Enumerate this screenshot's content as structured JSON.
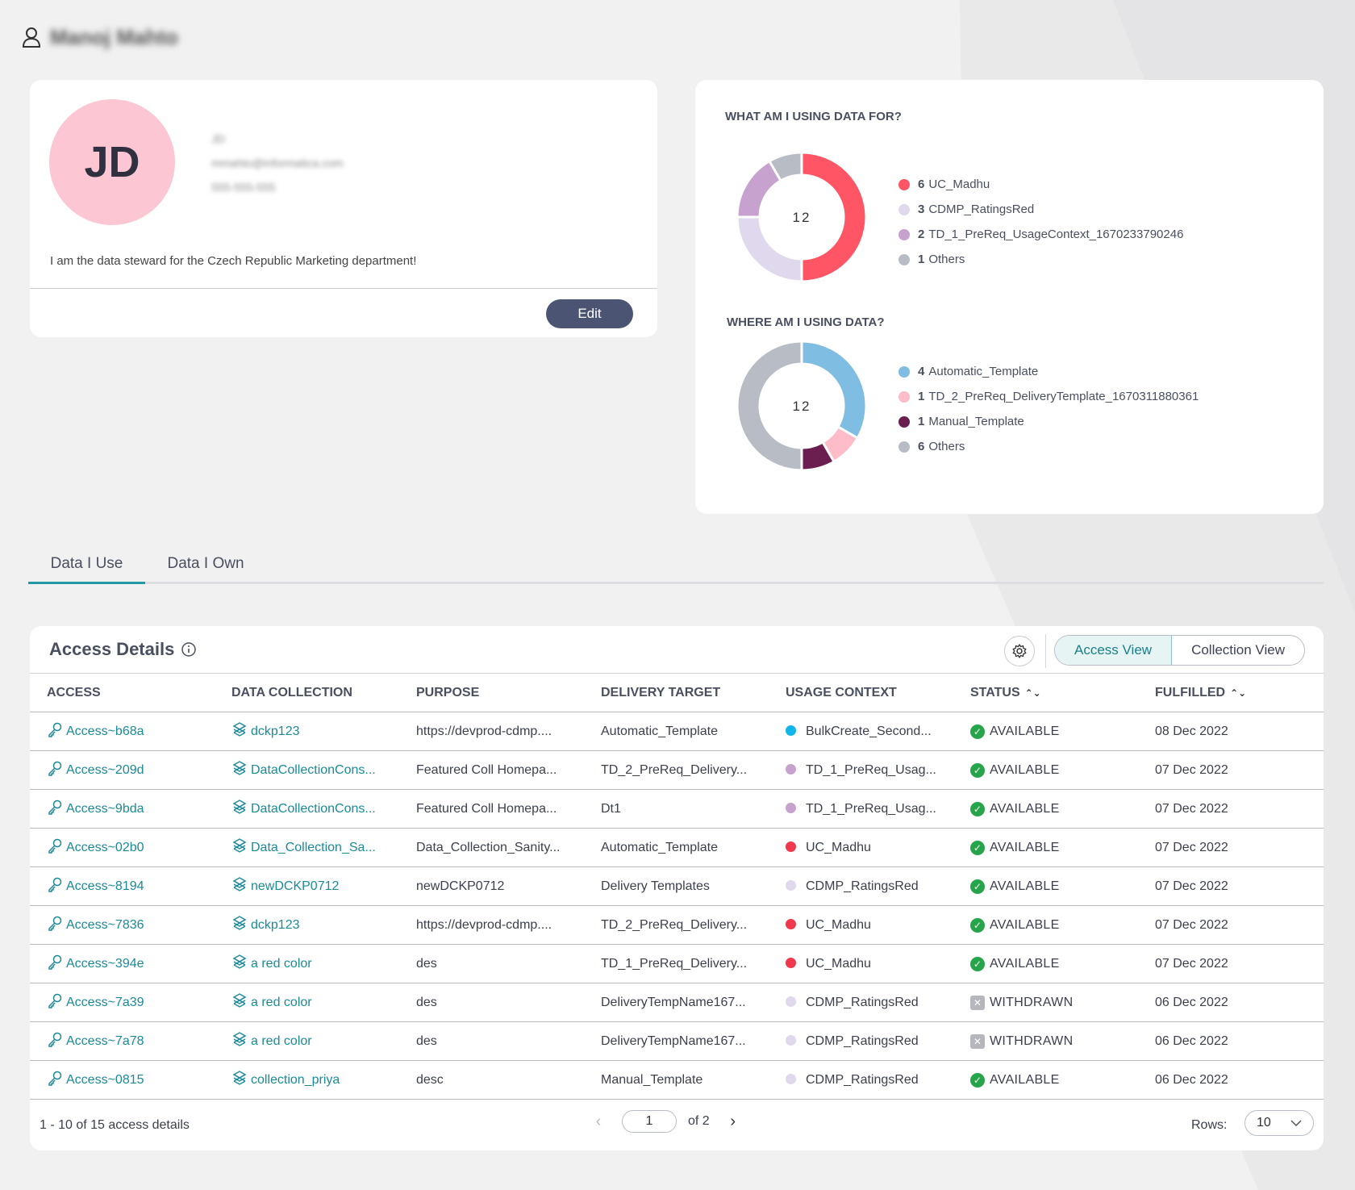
{
  "header": {
    "user_name": "Manoj Mahto"
  },
  "profile": {
    "initials": "JD",
    "info_lines": [
      "JD",
      "mmahto@informatica.com",
      "555-555-555"
    ],
    "bio": "I am the data steward for the Czech Republic Marketing department!",
    "edit_label": "Edit"
  },
  "charts": [
    {
      "title": "WHAT AM I USING DATA FOR?",
      "total": "12",
      "items": [
        {
          "value": "6",
          "label": "UC_Madhu",
          "color": "#ff5564"
        },
        {
          "value": "3",
          "label": "CDMP_RatingsRed",
          "color": "#e0d8ec"
        },
        {
          "value": "2",
          "label": "TD_1_PreReq_UsageContext_1670233790246",
          "color": "#c7a2cf"
        },
        {
          "value": "1",
          "label": "Others",
          "color": "#b8bcc4"
        }
      ]
    },
    {
      "title": "WHERE AM I USING DATA?",
      "total": "12",
      "items": [
        {
          "value": "4",
          "label": "Automatic_Template",
          "color": "#7fbde2"
        },
        {
          "value": "1",
          "label": "TD_2_PreReq_DeliveryTemplate_1670311880361",
          "color": "#fdbcc8"
        },
        {
          "value": "1",
          "label": "Manual_Template",
          "color": "#6b1e50"
        },
        {
          "value": "6",
          "label": "Others",
          "color": "#b8bcc4"
        }
      ]
    }
  ],
  "tabs": [
    "Data I Use",
    "Data I Own"
  ],
  "access": {
    "title": "Access Details",
    "views": [
      "Access View",
      "Collection View"
    ],
    "columns": [
      "ACCESS",
      "DATA COLLECTION",
      "PURPOSE",
      "DELIVERY TARGET",
      "USAGE CONTEXT",
      "STATUS",
      "FULFILLED"
    ],
    "rows": [
      {
        "access": "Access~b68a",
        "collection": "dckp123",
        "purpose": "https://devprod-cdmp....",
        "target": "Automatic_Template",
        "context": "BulkCreate_Second...",
        "context_color": "#12b5ea",
        "status": "AVAILABLE",
        "fulfilled": "08 Dec 2022"
      },
      {
        "access": "Access~209d",
        "collection": "DataCollectionCons...",
        "purpose": "Featured Coll Homepa...",
        "target": "TD_2_PreReq_Delivery...",
        "context": "TD_1_PreReq_Usag...",
        "context_color": "#c7a2cf",
        "status": "AVAILABLE",
        "fulfilled": "07 Dec 2022"
      },
      {
        "access": "Access~9bda",
        "collection": "DataCollectionCons...",
        "purpose": "Featured Coll Homepa...",
        "target": "Dt1",
        "context": "TD_1_PreReq_Usag...",
        "context_color": "#c7a2cf",
        "status": "AVAILABLE",
        "fulfilled": "07 Dec 2022"
      },
      {
        "access": "Access~02b0",
        "collection": "Data_Collection_Sa...",
        "purpose": "Data_Collection_Sanity...",
        "target": "Automatic_Template",
        "context": "UC_Madhu",
        "context_color": "#f0384c",
        "status": "AVAILABLE",
        "fulfilled": "07 Dec 2022"
      },
      {
        "access": "Access~8194",
        "collection": "newDCKP0712",
        "purpose": "newDCKP0712",
        "target": "Delivery Templates",
        "context": "CDMP_RatingsRed",
        "context_color": "#e0d8ec",
        "status": "AVAILABLE",
        "fulfilled": "07 Dec 2022"
      },
      {
        "access": "Access~7836",
        "collection": "dckp123",
        "purpose": "https://devprod-cdmp....",
        "target": "TD_2_PreReq_Delivery...",
        "context": "UC_Madhu",
        "context_color": "#f0384c",
        "status": "AVAILABLE",
        "fulfilled": "07 Dec 2022"
      },
      {
        "access": "Access~394e",
        "collection": "a red color",
        "purpose": "des",
        "target": "TD_1_PreReq_Delivery...",
        "context": "UC_Madhu",
        "context_color": "#f0384c",
        "status": "AVAILABLE",
        "fulfilled": "07 Dec 2022"
      },
      {
        "access": "Access~7a39",
        "collection": "a red color",
        "purpose": "des",
        "target": "DeliveryTempName167...",
        "context": "CDMP_RatingsRed",
        "context_color": "#e0d8ec",
        "status": "WITHDRAWN",
        "fulfilled": "06 Dec 2022"
      },
      {
        "access": "Access~7a78",
        "collection": "a red color",
        "purpose": "des",
        "target": "DeliveryTempName167...",
        "context": "CDMP_RatingsRed",
        "context_color": "#e0d8ec",
        "status": "WITHDRAWN",
        "fulfilled": "06 Dec 2022"
      },
      {
        "access": "Access~0815",
        "collection": "collection_priya",
        "purpose": "desc",
        "target": "Manual_Template",
        "context": "CDMP_RatingsRed",
        "context_color": "#e0d8ec",
        "status": "AVAILABLE",
        "fulfilled": "06 Dec 2022"
      }
    ],
    "pagination": {
      "summary": "1 - 10 of 15 access details",
      "page": "1",
      "of_label": "of 2",
      "rows_label": "Rows:",
      "rows_value": "10"
    }
  }
}
